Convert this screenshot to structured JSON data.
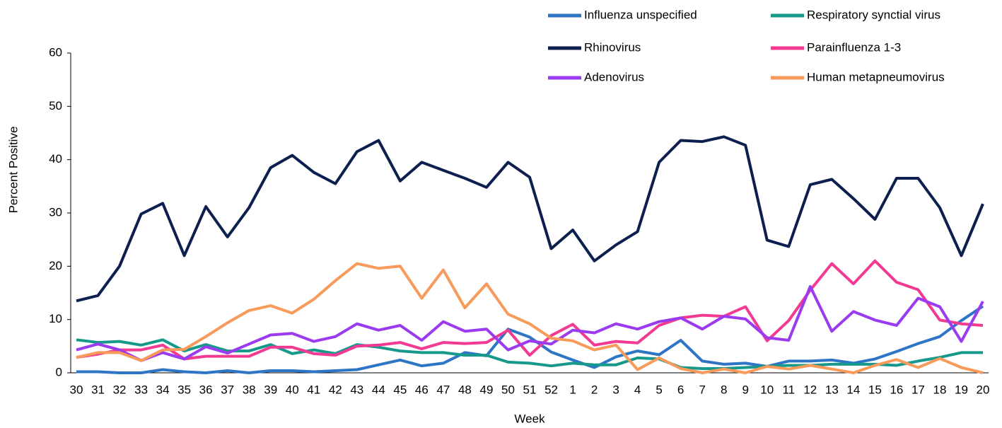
{
  "chart_data": {
    "type": "line",
    "x_label": "Week",
    "y_label": "Percent Positive",
    "categories": [
      "30",
      "31",
      "32",
      "33",
      "34",
      "35",
      "36",
      "37",
      "38",
      "39",
      "40",
      "41",
      "42",
      "43",
      "44",
      "45",
      "46",
      "47",
      "48",
      "49",
      "50",
      "51",
      "52",
      "1",
      "2",
      "3",
      "4",
      "5",
      "6",
      "7",
      "8",
      "9",
      "10",
      "11",
      "12",
      "13",
      "14",
      "15",
      "16",
      "17",
      "18",
      "19",
      "20"
    ],
    "ylim": [
      0,
      60
    ],
    "yticks": [
      0,
      10,
      20,
      30,
      40,
      50,
      60
    ],
    "grid": false,
    "legend": "top-right",
    "series": [
      {
        "name": "Influenza unspecified",
        "color": "#2e75c6",
        "values": [
          0.2,
          0.2,
          0,
          0,
          0.6,
          0.2,
          0,
          0.4,
          0,
          0.4,
          0.4,
          0.2,
          0.4,
          0.6,
          1.5,
          2.4,
          1.3,
          1.8,
          3.8,
          3.2,
          8.2,
          6.7,
          3.9,
          2.4,
          1,
          3,
          4.1,
          3.4,
          6.1,
          2.2,
          1.6,
          1.8,
          1.2,
          2.2,
          2.2,
          2.4,
          1.8,
          2.6,
          4,
          5.5,
          6.8,
          9.8,
          12.5
        ]
      },
      {
        "name": "Respiratory synctial virus",
        "color": "#16998a",
        "values": [
          6.2,
          5.7,
          5.9,
          5.2,
          6.2,
          4.1,
          5.3,
          4.1,
          4.1,
          5.3,
          3.6,
          4.3,
          3.6,
          5.3,
          4.8,
          4.1,
          3.8,
          3.8,
          3.3,
          3.3,
          2,
          1.8,
          1.3,
          1.8,
          1.5,
          1.5,
          2.8,
          2.6,
          1,
          0.8,
          0.8,
          1,
          1.2,
          1.4,
          1.4,
          1.6,
          1.6,
          1.6,
          1.4,
          2.2,
          2.9,
          3.8,
          3.8
        ]
      },
      {
        "name": "Rhinovirus",
        "color": "#0d1f4e",
        "values": [
          13.5,
          14.5,
          20,
          29.8,
          31.8,
          22,
          31.2,
          25.5,
          31,
          38.5,
          40.8,
          37.6,
          35.5,
          41.5,
          43.6,
          36,
          39.5,
          38,
          36.5,
          34.8,
          39.5,
          36.7,
          23.3,
          26.8,
          21,
          24,
          26.5,
          39.5,
          43.6,
          43.4,
          44.3,
          42.7,
          24.9,
          23.7,
          35.3,
          36.3,
          32.7,
          28.8,
          36.5,
          36.5,
          31,
          22,
          31.7
        ]
      },
      {
        "name": "Parainfluenza 1-3",
        "color": "#f23a92",
        "values": [
          2.9,
          3.5,
          4.3,
          4.3,
          5.2,
          2.6,
          3.1,
          3.1,
          3.1,
          4.8,
          4.8,
          3.6,
          3.3,
          5,
          5.2,
          5.7,
          4.5,
          5.7,
          5.5,
          5.7,
          8,
          3.3,
          7,
          9.1,
          5.2,
          5.9,
          5.6,
          8.9,
          10.3,
          10.8,
          10.6,
          12.4,
          6,
          9.8,
          15.5,
          20.5,
          16.7,
          21,
          17,
          15.6,
          9.9,
          9.2,
          8.9
        ]
      },
      {
        "name": "Adenovirus",
        "color": "#9b3bf0",
        "values": [
          4.3,
          5.4,
          4.3,
          2.3,
          3.8,
          2.6,
          4.9,
          3.7,
          5.4,
          7.1,
          7.4,
          5.9,
          6.8,
          9.2,
          8,
          8.9,
          6.1,
          9.6,
          7.8,
          8.2,
          4.3,
          6,
          5.4,
          8,
          7.5,
          9.2,
          8.2,
          9.6,
          10.3,
          8.2,
          10.6,
          10.1,
          6.6,
          6.1,
          16.2,
          7.8,
          11.5,
          9.9,
          8.9,
          14,
          12.4,
          5.9,
          13.4
        ]
      },
      {
        "name": "Human metapneumovirus",
        "color": "#f79a5a",
        "values": [
          2.9,
          3.8,
          3.8,
          2.3,
          4.3,
          4.4,
          6.8,
          9.4,
          11.7,
          12.6,
          11.2,
          13.8,
          17.3,
          20.5,
          19.6,
          20,
          14,
          19.3,
          12.2,
          16.7,
          11,
          9.2,
          6.5,
          6,
          4.3,
          5.2,
          0.6,
          2.8,
          0.8,
          0,
          0.7,
          0,
          1.2,
          0.7,
          1.4,
          0.7,
          0,
          1.4,
          2.5,
          1,
          2.7,
          1,
          0
        ]
      }
    ]
  }
}
